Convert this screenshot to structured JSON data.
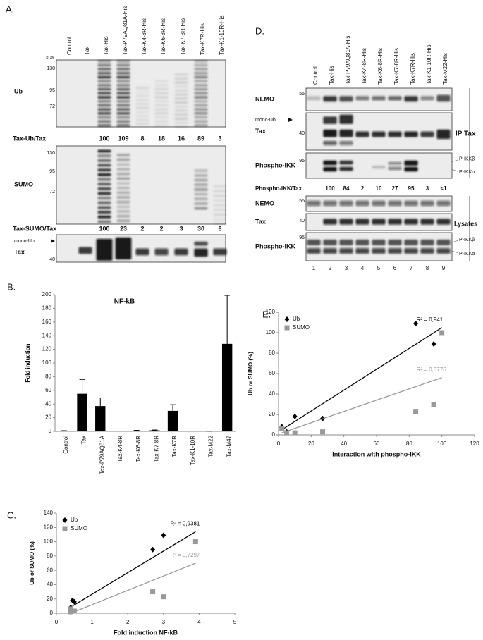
{
  "panel_a": {
    "label": "A.",
    "kda": "kDa",
    "lanes": [
      "Control",
      "Tax",
      "Tax-His",
      "Tax-P79AQ81A-His",
      "Tax-K4-8R-His",
      "Tax-K6-8R-His",
      "Tax-K7-8R-His",
      "Tax-K7R-His",
      "Tax-K1-10R-His"
    ],
    "blots": [
      {
        "name": "Ub",
        "markers": [
          130,
          95,
          72
        ]
      },
      {
        "name": "SUMO",
        "markers": [
          130,
          95,
          72
        ]
      },
      {
        "name": "Tax",
        "markers": [
          40
        ],
        "mono_ub": "mono-Ub"
      }
    ],
    "quant": [
      {
        "label": "Tax-Ub/Tax",
        "values": [
          100,
          109,
          8,
          18,
          16,
          89,
          3
        ]
      },
      {
        "label": "Tax-SUMO/Tax",
        "values": [
          100,
          23,
          2,
          2,
          3,
          30,
          6
        ]
      }
    ]
  },
  "panel_d": {
    "label": "D.",
    "lanes": [
      "Control",
      "Tax-His",
      "Tax-P79AQ81A-His",
      "Tax-K4-8R-His",
      "Tax-K6-8R-His",
      "Tax-K7-8R-His",
      "Tax-K7R-His",
      "Tax-K1-10R-His",
      "Tax-M22-His"
    ],
    "ip": {
      "label": "IP Tax",
      "blots": [
        {
          "name": "NEMO",
          "markers": [
            55
          ]
        },
        {
          "name": "Tax",
          "markers": [
            40
          ],
          "mono_ub": "mono-Ub"
        },
        {
          "name": "Phospho-IKK",
          "markers": [
            95
          ],
          "bands": [
            "P-IKKβ",
            "P-IKKα"
          ]
        }
      ]
    },
    "quant": {
      "label": "Phospho-IKK/Tax",
      "values": [
        100,
        84,
        2,
        10,
        27,
        95,
        3,
        "<1"
      ]
    },
    "lysates": {
      "label": "Lysates",
      "blots": [
        {
          "name": "NEMO",
          "markers": [
            55
          ]
        },
        {
          "name": "Tax",
          "markers": [
            40
          ]
        },
        {
          "name": "Phospho-IKK",
          "markers": [
            95
          ],
          "bands": [
            "P-IKKβ",
            "P-IKKα"
          ]
        }
      ]
    },
    "lane_numbers": [
      1,
      2,
      3,
      4,
      5,
      6,
      7,
      8,
      9
    ]
  },
  "chart_data": [
    {
      "type": "bar",
      "label": "B.",
      "title": "NF-kB",
      "y_label": "Fold induction",
      "categories": [
        "Control",
        "Tax",
        "Tax-P79AQ81A",
        "Tax-K4-8R",
        "Tax-K6-8R",
        "Tax-K7-8R",
        "Tax-K7R",
        "Tax-K1-10R",
        "Tax-M22",
        "Tax-M47"
      ],
      "values": [
        1,
        55,
        37,
        0.5,
        1,
        1.5,
        30,
        0.5,
        0.3,
        128
      ],
      "errors": [
        0,
        21,
        12,
        0,
        0.5,
        0.5,
        9,
        0,
        0,
        71
      ],
      "color": "#000000",
      "ylim": [
        0,
        200
      ],
      "yticks": [
        0,
        20,
        40,
        60,
        80,
        100,
        120,
        140,
        160,
        180,
        200
      ]
    },
    {
      "type": "scatter",
      "label": "C.",
      "x_label": "Fold induction NF-kB",
      "y_label": "Ub or SUMO (%)",
      "xlim": [
        0,
        5
      ],
      "xticks": [
        0,
        1,
        2,
        3,
        4,
        5
      ],
      "ylim": [
        0,
        140
      ],
      "yticks": [
        0,
        20,
        40,
        60,
        80,
        100,
        120,
        140
      ],
      "legend": "top-left",
      "series": [
        {
          "name": "Ub",
          "color": "#000000",
          "marker": "diamond",
          "x": [
            0.4,
            0.4,
            0.45,
            0.5,
            2.7,
            3.0
          ],
          "values": [
            3,
            8,
            18,
            16,
            89,
            109
          ],
          "trendline": {
            "x": [
              0.45,
              3.9
            ],
            "values": [
              10,
              114
            ]
          },
          "r2_label": "R² = 0,9381"
        },
        {
          "name": "SUMO",
          "color": "#999999",
          "marker": "square",
          "x": [
            0.4,
            0.4,
            0.5,
            2.7,
            3.0,
            3.9
          ],
          "values": [
            2,
            6,
            3,
            30,
            23,
            100
          ],
          "trendline": {
            "x": [
              0.4,
              3.9
            ],
            "values": [
              0,
              70
            ]
          },
          "r2_label": "R² = 0,7297"
        }
      ]
    },
    {
      "type": "scatter",
      "label": "E.",
      "x_label": "Interaction with phospho-IKK",
      "y_label": "Ub or SUMO (%)",
      "xlim": [
        0,
        120
      ],
      "xticks": [
        0,
        20,
        40,
        60,
        80,
        100,
        120
      ],
      "ylim": [
        0,
        120
      ],
      "yticks": [
        0,
        20,
        40,
        60,
        80,
        100,
        120
      ],
      "legend": "top-left",
      "series": [
        {
          "name": "Ub",
          "color": "#000000",
          "marker": "diamond",
          "x": [
            2,
            5,
            10,
            27,
            84,
            95
          ],
          "values": [
            8,
            3,
            18,
            16,
            109,
            89
          ],
          "trendline": {
            "x": [
              2,
              100
            ],
            "values": [
              5,
              105
            ]
          },
          "r2_label": "R² = 0,941"
        },
        {
          "name": "SUMO",
          "color": "#999999",
          "marker": "square",
          "x": [
            2,
            5,
            10,
            27,
            84,
            95,
            100
          ],
          "values": [
            6,
            2,
            2,
            3,
            23,
            30,
            100
          ],
          "trendline": {
            "x": [
              2,
              100
            ],
            "values": [
              2,
              56
            ]
          },
          "r2_label": "R² = 0,5776"
        }
      ]
    }
  ]
}
